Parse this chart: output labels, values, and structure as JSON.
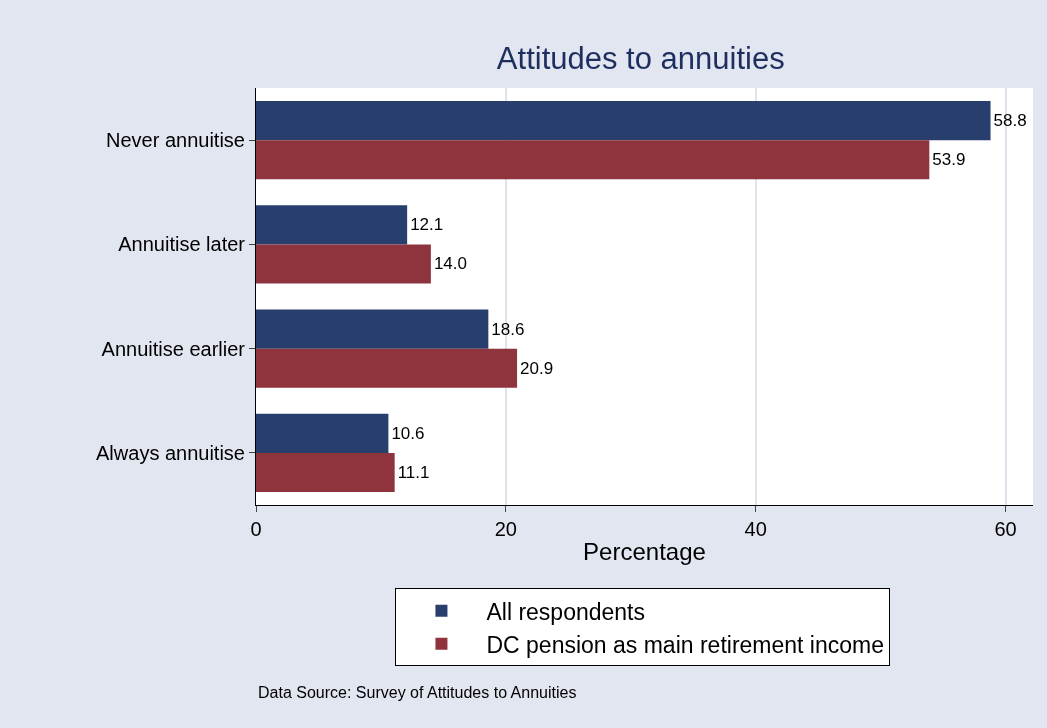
{
  "chart_data": {
    "type": "bar",
    "orientation": "horizontal",
    "title": "Attitudes to annuities",
    "xlabel": "Percentage",
    "categories": [
      "Never annuitise",
      "Annuitise later",
      "Annuitise earlier",
      "Always annuitise"
    ],
    "series": [
      {
        "name": "All respondents",
        "color": "#283f6e",
        "values": [
          58.8,
          12.1,
          18.6,
          10.6
        ],
        "value_labels": [
          "58.8",
          "12.1",
          "18.6",
          "10.6"
        ]
      },
      {
        "name": "DC pension as main retirement income",
        "color": "#8f333c",
        "values": [
          53.9,
          14.0,
          20.9,
          11.1
        ],
        "value_labels": [
          "53.9",
          "14.0",
          "20.9",
          "11.1"
        ]
      }
    ],
    "xlim": [
      0,
      62.2
    ],
    "xticks": [
      0,
      20,
      40,
      60
    ],
    "grid": "x",
    "legend": "bottom",
    "annotations": [
      "Data Source: Survey of Attitudes to Annuities"
    ]
  }
}
